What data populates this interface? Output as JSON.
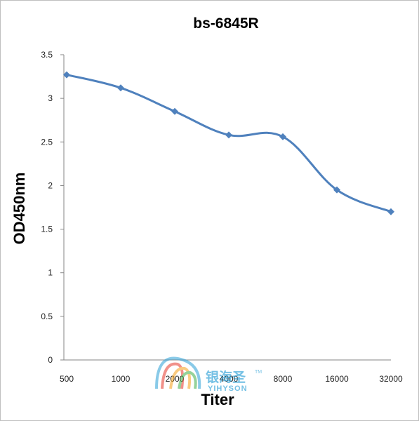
{
  "chart_data": {
    "type": "line",
    "title": "bs-6845R",
    "xlabel": "Titer",
    "ylabel": "OD450nm",
    "categories": [
      "500",
      "1000",
      "2000",
      "4000",
      "8000",
      "16000",
      "32000"
    ],
    "series": [
      {
        "values": [
          3.27,
          3.12,
          2.85,
          2.58,
          2.56,
          1.95,
          1.7
        ]
      }
    ],
    "ylim": [
      0,
      3.5
    ],
    "yticks": [
      "0",
      "0.5",
      "1",
      "1.5",
      "2",
      "2.5",
      "3",
      "3.5"
    ],
    "grid": false,
    "legend": "none",
    "line_color": "#4f81bd"
  },
  "watermark": {
    "name_cn": "银海圣",
    "name_en": "YIHYSON",
    "tm": "TM",
    "logo_colors": [
      "#e6392b",
      "#f7a21b",
      "#3fae49",
      "#2a9fd6"
    ]
  }
}
